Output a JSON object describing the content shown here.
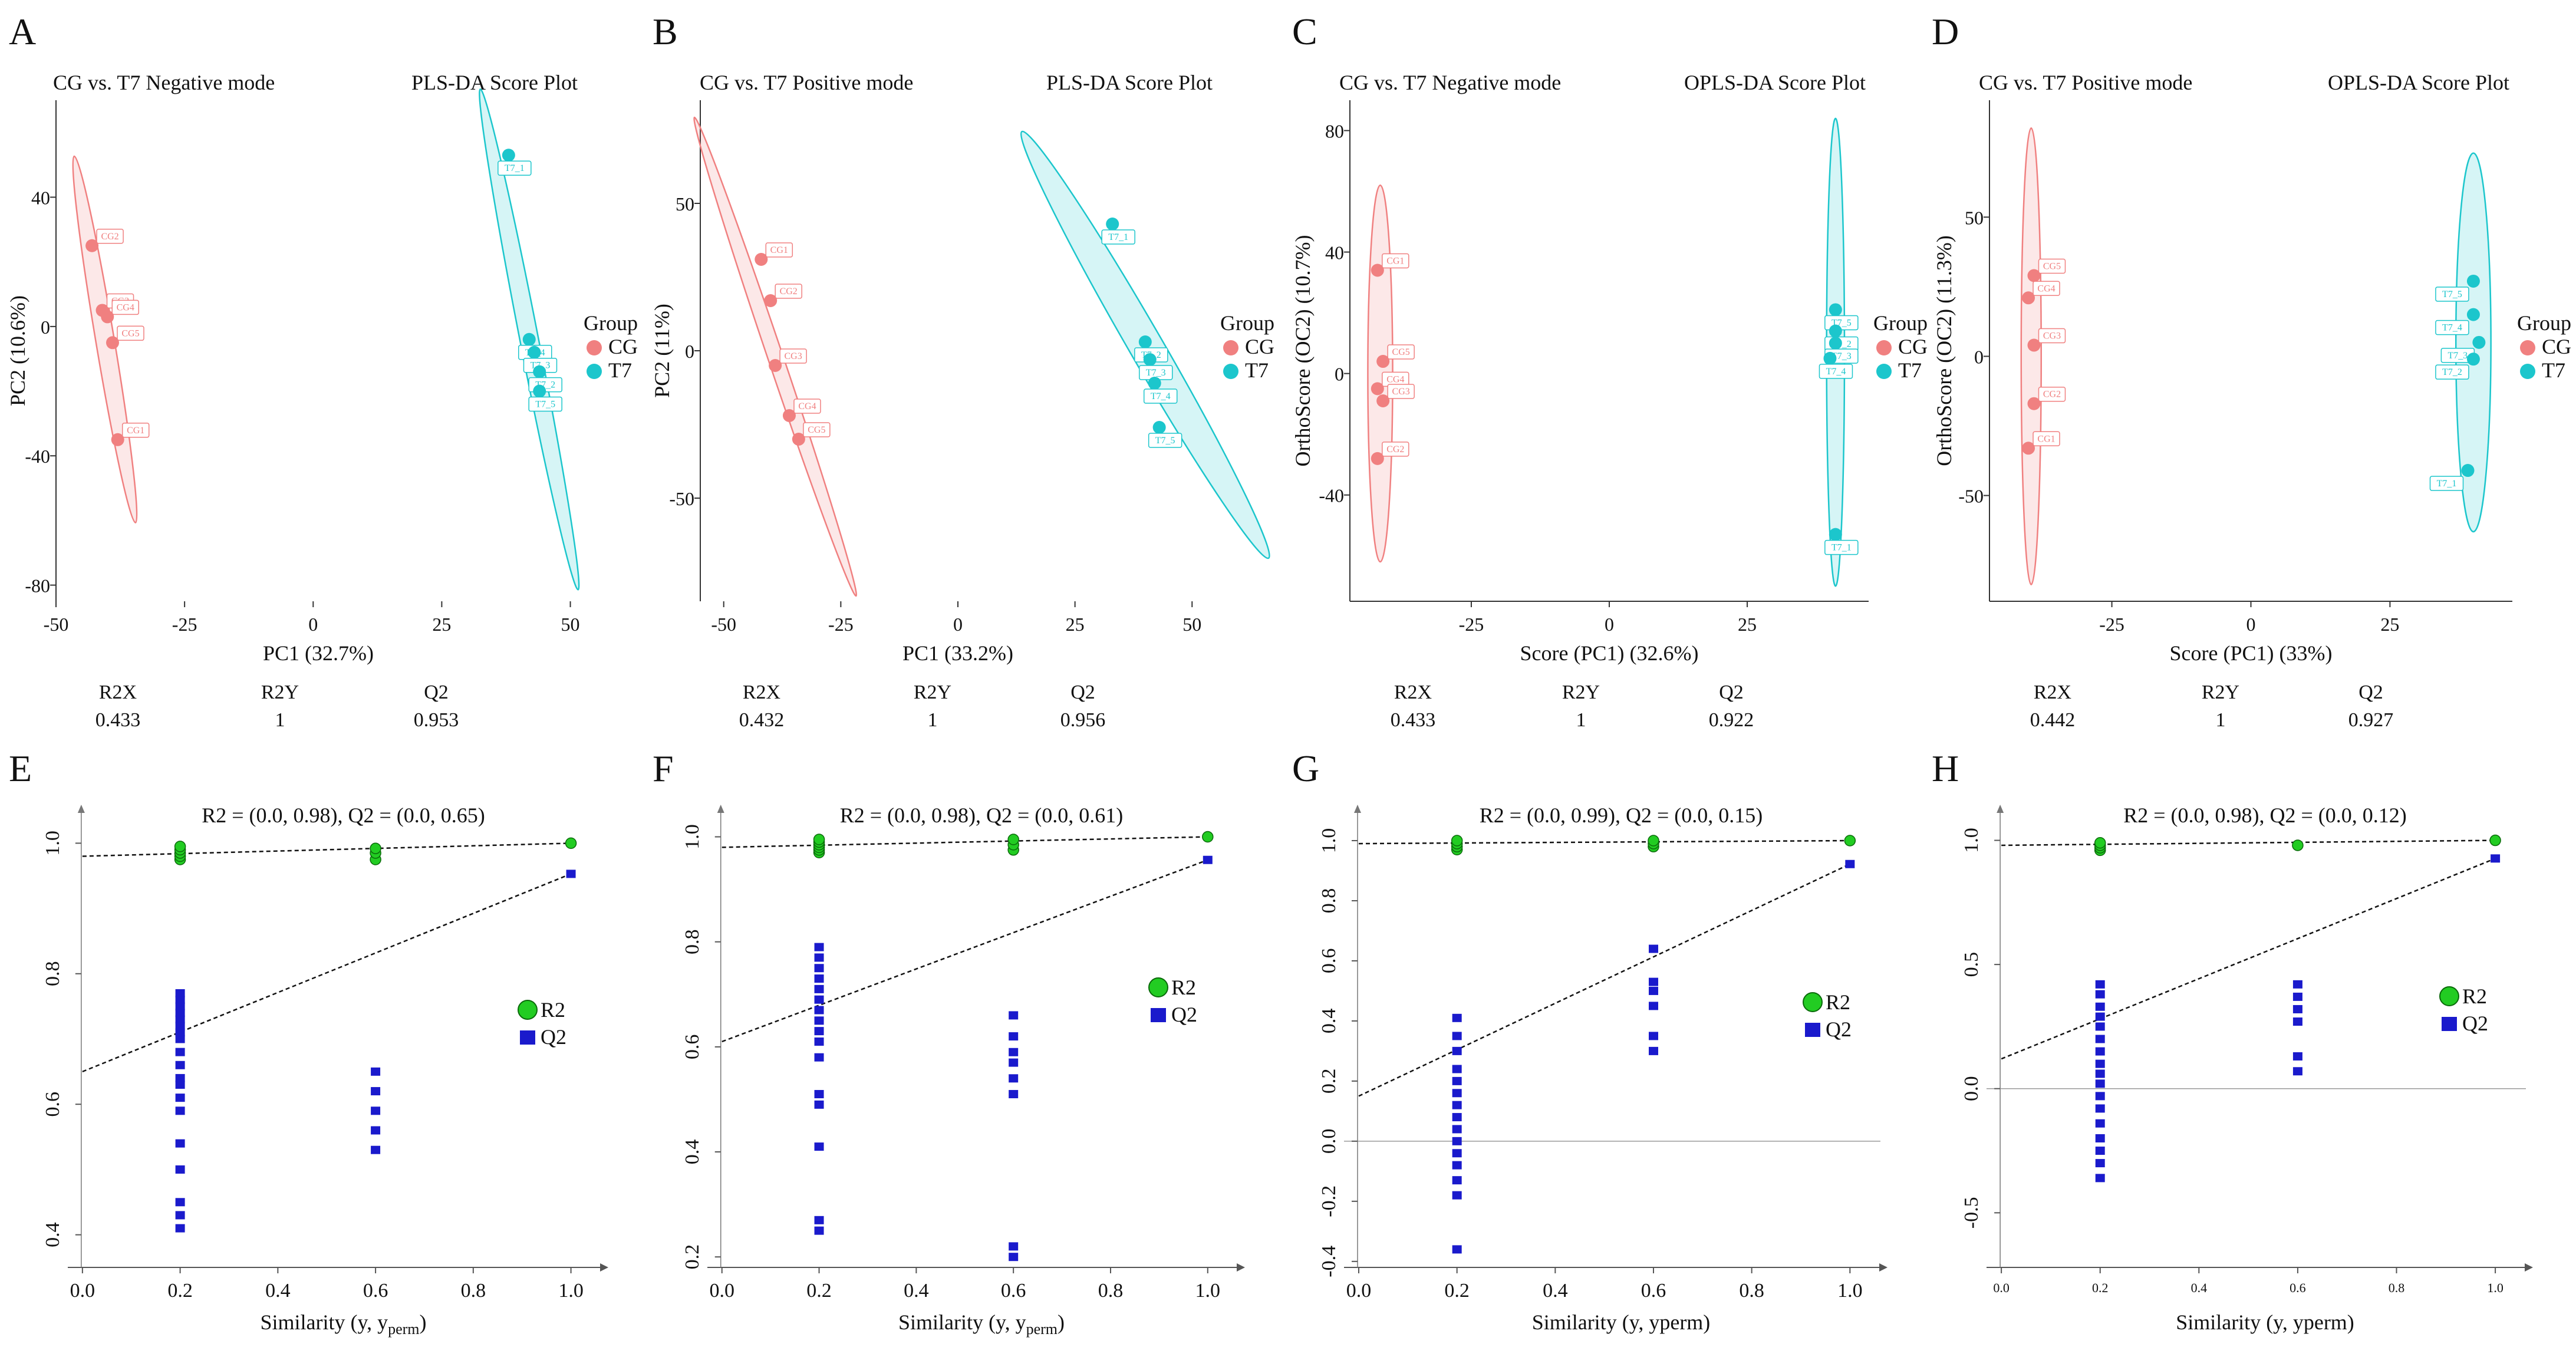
{
  "figure_title": "PLS-DA / OPLS-DA score plots and permutation tests, CG vs. T7",
  "colors": {
    "cg": "#f08080",
    "t7": "#1cc6cc",
    "r2": "#22cc22",
    "q2": "#1a1acc",
    "axis": "#555555"
  },
  "chart_data": [
    {
      "panel": "A",
      "type": "scatter",
      "subtitle": "CG vs. T7  Negative mode",
      "title": "PLS-DA Score Plot",
      "xlabel": "PC1 (32.7%)",
      "ylabel": "PC2 (10.6%)",
      "xlim": [
        -50,
        52
      ],
      "ylim": [
        -85,
        70
      ],
      "xticks": [
        -50,
        -25,
        0,
        25,
        50
      ],
      "yticks": [
        -80,
        -40,
        0,
        40
      ],
      "legend_title": "Group",
      "legend": [
        "CG",
        "T7"
      ],
      "series": [
        {
          "name": "CG",
          "points": [
            {
              "label": "CG2",
              "x": -43,
              "y": 25
            },
            {
              "label": "CG3",
              "x": -41,
              "y": 5
            },
            {
              "label": "CG4",
              "x": -40,
              "y": 3
            },
            {
              "label": "CG5",
              "x": -39,
              "y": -5
            },
            {
              "label": "CG1",
              "x": -38,
              "y": -35
            }
          ],
          "ellipse": {
            "center": [
              -40.5,
              -4
            ],
            "a": 57,
            "b": 2.0,
            "angle_deg": -84
          }
        },
        {
          "name": "T7",
          "points": [
            {
              "label": "T7_1",
              "x": 38,
              "y": 53
            },
            {
              "label": "T7_4",
              "x": 42,
              "y": -4
            },
            {
              "label": "T7_3",
              "x": 43,
              "y": -8
            },
            {
              "label": "T7_2",
              "x": 44,
              "y": -14
            },
            {
              "label": "T7_5",
              "x": 44,
              "y": -20
            }
          ],
          "ellipse": {
            "center": [
              42,
              -4
            ],
            "a": 78,
            "b": 2.0,
            "angle_deg": -83
          }
        }
      ],
      "stats": {
        "R2X": "0.433",
        "R2Y": "1",
        "Q2": "0.953"
      }
    },
    {
      "panel": "B",
      "type": "scatter",
      "subtitle": "CG vs. T7 Positive mode",
      "title": "PLS-DA Score Plot",
      "xlabel": "PC1 (33.2%)",
      "ylabel": "PC2 (11%)",
      "xlim": [
        -55,
        55
      ],
      "ylim": [
        -85,
        85
      ],
      "xticks": [
        -50,
        -25,
        0,
        25,
        50
      ],
      "yticks": [
        -50,
        0,
        50
      ],
      "legend_title": "Group",
      "legend": [
        "CG",
        "T7"
      ],
      "series": [
        {
          "name": "CG",
          "points": [
            {
              "label": "CG1",
              "x": -42,
              "y": 31
            },
            {
              "label": "CG2",
              "x": -40,
              "y": 17
            },
            {
              "label": "CG3",
              "x": -39,
              "y": -5
            },
            {
              "label": "CG4",
              "x": -36,
              "y": -22
            },
            {
              "label": "CG5",
              "x": -34,
              "y": -30
            }
          ],
          "ellipse": {
            "center": [
              -39,
              -2
            ],
            "a": 83,
            "b": 1.8,
            "angle_deg": -78
          }
        },
        {
          "name": "T7",
          "points": [
            {
              "label": "T7_1",
              "x": 33,
              "y": 43
            },
            {
              "label": "T7_2",
              "x": 40,
              "y": 3
            },
            {
              "label": "T7_3",
              "x": 41,
              "y": -3
            },
            {
              "label": "T7_4",
              "x": 42,
              "y": -11
            },
            {
              "label": "T7_5",
              "x": 43,
              "y": -26
            }
          ],
          "ellipse": {
            "center": [
              40,
              2
            ],
            "a": 77,
            "b": 4.0,
            "angle_deg": -70
          }
        }
      ],
      "stats": {
        "R2X": "0.432",
        "R2Y": "1",
        "Q2": "0.956"
      }
    },
    {
      "panel": "C",
      "type": "scatter",
      "subtitle": "CG vs. T7  Negative mode",
      "title": "OPLS-DA Score Plot",
      "xlabel": "Score (PC1) (32.6%)",
      "ylabel": "OrthoScore (OC2) (10.7%)",
      "xlim": [
        -47,
        47
      ],
      "ylim": [
        -75,
        90
      ],
      "xticks": [
        -25,
        0,
        25
      ],
      "yticks": [
        -40,
        0,
        40,
        80
      ],
      "legend_title": "Group",
      "legend": [
        "CG",
        "T7"
      ],
      "series": [
        {
          "name": "CG",
          "points": [
            {
              "label": "CG1",
              "x": -42,
              "y": 34
            },
            {
              "label": "CG5",
              "x": -41,
              "y": 4
            },
            {
              "label": "CG4",
              "x": -42,
              "y": -5
            },
            {
              "label": "CG3",
              "x": -41,
              "y": -9
            },
            {
              "label": "CG2",
              "x": -42,
              "y": -28
            }
          ],
          "ellipse": {
            "center": [
              -41.5,
              0
            ],
            "a": 62,
            "b": 2.5,
            "angle_deg": -90
          }
        },
        {
          "name": "T7",
          "points": [
            {
              "label": "T7_5",
              "x": 41,
              "y": 21
            },
            {
              "label": "T7_2",
              "x": 41,
              "y": 14
            },
            {
              "label": "T7_3",
              "x": 41,
              "y": 10
            },
            {
              "label": "T7_4",
              "x": 40,
              "y": 5
            },
            {
              "label": "T7_1",
              "x": 41,
              "y": -53
            }
          ],
          "ellipse": {
            "center": [
              41,
              7
            ],
            "a": 77,
            "b": 1.8,
            "angle_deg": -90
          }
        }
      ],
      "stats": {
        "R2X": "0.433",
        "R2Y": "1",
        "Q2": "0.922"
      }
    },
    {
      "panel": "D",
      "type": "scatter",
      "subtitle": "CG vs. T7 Positive mode",
      "title": "OPLS-DA Score Plot",
      "xlabel": "Score (PC1) (33%)",
      "ylabel": "OrthoScore (OC2) (11.3%)",
      "xlim": [
        -47,
        47
      ],
      "ylim": [
        -88,
        92
      ],
      "xticks": [
        -25,
        0,
        25
      ],
      "yticks": [
        -50,
        0,
        50
      ],
      "legend_title": "Group",
      "legend": [
        "CG",
        "T7"
      ],
      "series": [
        {
          "name": "CG",
          "points": [
            {
              "label": "CG5",
              "x": -39,
              "y": 29
            },
            {
              "label": "CG4",
              "x": -40,
              "y": 21
            },
            {
              "label": "CG3",
              "x": -39,
              "y": 4
            },
            {
              "label": "CG2",
              "x": -39,
              "y": -17
            },
            {
              "label": "CG1",
              "x": -40,
              "y": -33
            }
          ],
          "ellipse": {
            "center": [
              -39.5,
              0
            ],
            "a": 82,
            "b": 2.0,
            "angle_deg": -90
          }
        },
        {
          "name": "T7",
          "points": [
            {
              "label": "T7_5",
              "x": 40,
              "y": 27
            },
            {
              "label": "T7_4",
              "x": 40,
              "y": 15
            },
            {
              "label": "T7_3",
              "x": 41,
              "y": 5
            },
            {
              "label": "T7_2",
              "x": 40,
              "y": -1
            },
            {
              "label": "T7_1",
              "x": 39,
              "y": -41
            }
          ],
          "ellipse": {
            "center": [
              40,
              5
            ],
            "a": 68,
            "b": 3.5,
            "angle_deg": -90
          }
        }
      ],
      "stats": {
        "R2X": "0.442",
        "R2Y": "1",
        "Q2": "0.927"
      }
    },
    {
      "panel": "E",
      "type": "scatter",
      "title": "R2 = (0.0, 0.98), Q2 = (0.0, 0.65)",
      "xlabel": "Similarity (y, y",
      "xlabel_sub": "perm",
      "xlabel_end": ")",
      "xlim": [
        -0.03,
        1.05
      ],
      "ylim": [
        0.35,
        1.05
      ],
      "zero_line": false,
      "xticks": [
        0.0,
        0.2,
        0.4,
        0.6,
        0.8,
        1.0
      ],
      "yticks": [
        0.4,
        0.6,
        0.8,
        1.0
      ],
      "xtick_labels": [
        "0.0",
        "0.2",
        "0.4",
        "0.6",
        "0.8",
        "1.0"
      ],
      "ytick_labels": [
        "0.4",
        "0.6",
        "0.8",
        "1.0"
      ],
      "legend": [
        "R2",
        "Q2"
      ],
      "r2_line": [
        0.98,
        1.0
      ],
      "q2_line": [
        0.65,
        0.953
      ],
      "r2_points": [
        [
          0.2,
          0.975
        ],
        [
          0.2,
          0.98
        ],
        [
          0.2,
          0.985
        ],
        [
          0.2,
          0.99
        ],
        [
          0.2,
          0.995
        ],
        [
          0.6,
          0.975
        ],
        [
          0.6,
          0.985
        ],
        [
          0.6,
          0.992
        ],
        [
          1.0,
          1.0
        ]
      ],
      "q2_points": [
        [
          0.2,
          0.41
        ],
        [
          0.2,
          0.43
        ],
        [
          0.2,
          0.45
        ],
        [
          0.2,
          0.5
        ],
        [
          0.2,
          0.54
        ],
        [
          0.2,
          0.59
        ],
        [
          0.2,
          0.61
        ],
        [
          0.2,
          0.63
        ],
        [
          0.2,
          0.64
        ],
        [
          0.2,
          0.66
        ],
        [
          0.2,
          0.68
        ],
        [
          0.2,
          0.7
        ],
        [
          0.2,
          0.71
        ],
        [
          0.2,
          0.72
        ],
        [
          0.2,
          0.73
        ],
        [
          0.2,
          0.74
        ],
        [
          0.2,
          0.75
        ],
        [
          0.2,
          0.76
        ],
        [
          0.2,
          0.77
        ],
        [
          0.6,
          0.53
        ],
        [
          0.6,
          0.56
        ],
        [
          0.6,
          0.59
        ],
        [
          0.6,
          0.62
        ],
        [
          0.6,
          0.65
        ],
        [
          1.0,
          0.953
        ]
      ]
    },
    {
      "panel": "F",
      "type": "scatter",
      "title": "R2 = (0.0, 0.98), Q2 = (0.0, 0.61)",
      "xlabel": "Similarity (y, y",
      "xlabel_sub": "perm",
      "xlabel_end": ")",
      "xlim": [
        -0.03,
        1.05
      ],
      "ylim": [
        0.18,
        1.05
      ],
      "zero_line": false,
      "xticks": [
        0.0,
        0.2,
        0.4,
        0.6,
        0.8,
        1.0
      ],
      "yticks": [
        0.2,
        0.4,
        0.6,
        0.8,
        1.0
      ],
      "xtick_labels": [
        "0.0",
        "0.2",
        "0.4",
        "0.6",
        "0.8",
        "1.0"
      ],
      "ytick_labels": [
        "0.2",
        "0.4",
        "0.6",
        "0.8",
        "1.0"
      ],
      "legend": [
        "R2",
        "Q2"
      ],
      "r2_line": [
        0.98,
        1.0
      ],
      "q2_line": [
        0.61,
        0.956
      ],
      "r2_points": [
        [
          0.2,
          0.97
        ],
        [
          0.2,
          0.975
        ],
        [
          0.2,
          0.98
        ],
        [
          0.2,
          0.985
        ],
        [
          0.2,
          0.99
        ],
        [
          0.2,
          0.995
        ],
        [
          0.6,
          0.975
        ],
        [
          0.6,
          0.985
        ],
        [
          0.6,
          0.995
        ],
        [
          1.0,
          1.0
        ]
      ],
      "q2_points": [
        [
          0.2,
          0.25
        ],
        [
          0.2,
          0.27
        ],
        [
          0.2,
          0.41
        ],
        [
          0.2,
          0.49
        ],
        [
          0.2,
          0.51
        ],
        [
          0.2,
          0.58
        ],
        [
          0.2,
          0.61
        ],
        [
          0.2,
          0.63
        ],
        [
          0.2,
          0.65
        ],
        [
          0.2,
          0.67
        ],
        [
          0.2,
          0.69
        ],
        [
          0.2,
          0.71
        ],
        [
          0.2,
          0.73
        ],
        [
          0.2,
          0.75
        ],
        [
          0.2,
          0.77
        ],
        [
          0.2,
          0.79
        ],
        [
          0.6,
          0.2
        ],
        [
          0.6,
          0.22
        ],
        [
          0.6,
          0.51
        ],
        [
          0.6,
          0.54
        ],
        [
          0.6,
          0.57
        ],
        [
          0.6,
          0.59
        ],
        [
          0.6,
          0.62
        ],
        [
          0.6,
          0.66
        ],
        [
          1.0,
          0.956
        ]
      ]
    },
    {
      "panel": "G",
      "type": "scatter",
      "title": "R2 = (0.0, 0.99), Q2 = (0.0, 0.15)",
      "xlabel": "Similarity (y, yperm)",
      "xlabel_sub": "",
      "xlabel_end": "",
      "xlim": [
        -0.03,
        1.05
      ],
      "ylim": [
        -0.42,
        1.1
      ],
      "zero_line": true,
      "xticks": [
        0.0,
        0.2,
        0.4,
        0.6,
        0.8,
        1.0
      ],
      "yticks": [
        -0.4,
        -0.2,
        0.0,
        0.2,
        0.4,
        0.6,
        0.8,
        1.0
      ],
      "xtick_labels": [
        "0.0",
        "0.2",
        "0.4",
        "0.6",
        "0.8",
        "1.0"
      ],
      "ytick_labels": [
        "-0.4",
        "-0.2",
        "0.0",
        "0.2",
        "0.4",
        "0.6",
        "0.8",
        "1.0"
      ],
      "legend": [
        "R2",
        "Q2"
      ],
      "r2_line": [
        0.99,
        1.0
      ],
      "q2_line": [
        0.15,
        0.922
      ],
      "r2_points": [
        [
          0.2,
          0.97
        ],
        [
          0.2,
          0.98
        ],
        [
          0.2,
          0.99
        ],
        [
          0.2,
          1.0
        ],
        [
          0.6,
          0.98
        ],
        [
          0.6,
          0.99
        ],
        [
          0.6,
          1.0
        ],
        [
          1.0,
          1.0
        ]
      ],
      "q2_points": [
        [
          0.2,
          -0.36
        ],
        [
          0.2,
          -0.18
        ],
        [
          0.2,
          -0.13
        ],
        [
          0.2,
          -0.08
        ],
        [
          0.2,
          -0.04
        ],
        [
          0.2,
          0.0
        ],
        [
          0.2,
          0.04
        ],
        [
          0.2,
          0.08
        ],
        [
          0.2,
          0.12
        ],
        [
          0.2,
          0.16
        ],
        [
          0.2,
          0.2
        ],
        [
          0.2,
          0.24
        ],
        [
          0.2,
          0.3
        ],
        [
          0.2,
          0.35
        ],
        [
          0.2,
          0.41
        ],
        [
          0.6,
          0.3
        ],
        [
          0.6,
          0.35
        ],
        [
          0.6,
          0.45
        ],
        [
          0.6,
          0.5
        ],
        [
          0.6,
          0.53
        ],
        [
          0.6,
          0.64
        ],
        [
          1.0,
          0.922
        ]
      ]
    },
    {
      "panel": "H",
      "type": "scatter",
      "title": "R2 = (0.0, 0.98), Q2 = (0.0, 0.12)",
      "xlabel": "Similarity (y, yperm)",
      "xlabel_sub": "",
      "xlabel_end": "",
      "xlim": [
        -0.03,
        1.05
      ],
      "ylim": [
        -0.72,
        1.12
      ],
      "zero_line": true,
      "xticks": [
        0.0,
        0.2,
        0.4,
        0.6,
        0.8,
        1.0
      ],
      "yticks": [
        -0.5,
        0.0,
        0.5,
        1.0
      ],
      "xtick_labels": [
        "0.0",
        "0.2",
        "0.4",
        "0.6",
        "0.8",
        "1.0"
      ],
      "ytick_labels": [
        "-0.5",
        "0.0",
        "0.5",
        "1.0"
      ],
      "legend": [
        "R2",
        "Q2"
      ],
      "r2_line": [
        0.98,
        1.0
      ],
      "q2_line": [
        0.12,
        0.927
      ],
      "r2_points": [
        [
          0.2,
          0.96
        ],
        [
          0.2,
          0.97
        ],
        [
          0.2,
          0.98
        ],
        [
          0.2,
          0.99
        ],
        [
          0.6,
          0.98
        ],
        [
          1.0,
          1.0
        ]
      ],
      "q2_points": [
        [
          0.2,
          -0.36
        ],
        [
          0.2,
          -0.3
        ],
        [
          0.2,
          -0.25
        ],
        [
          0.2,
          -0.2
        ],
        [
          0.2,
          -0.14
        ],
        [
          0.2,
          -0.08
        ],
        [
          0.2,
          -0.03
        ],
        [
          0.2,
          0.02
        ],
        [
          0.2,
          0.06
        ],
        [
          0.2,
          0.1
        ],
        [
          0.2,
          0.15
        ],
        [
          0.2,
          0.2
        ],
        [
          0.2,
          0.25
        ],
        [
          0.2,
          0.29
        ],
        [
          0.2,
          0.33
        ],
        [
          0.2,
          0.38
        ],
        [
          0.2,
          0.42
        ],
        [
          0.6,
          0.07
        ],
        [
          0.6,
          0.13
        ],
        [
          0.6,
          0.27
        ],
        [
          0.6,
          0.32
        ],
        [
          0.6,
          0.37
        ],
        [
          0.6,
          0.42
        ],
        [
          1.0,
          0.927
        ]
      ]
    }
  ]
}
